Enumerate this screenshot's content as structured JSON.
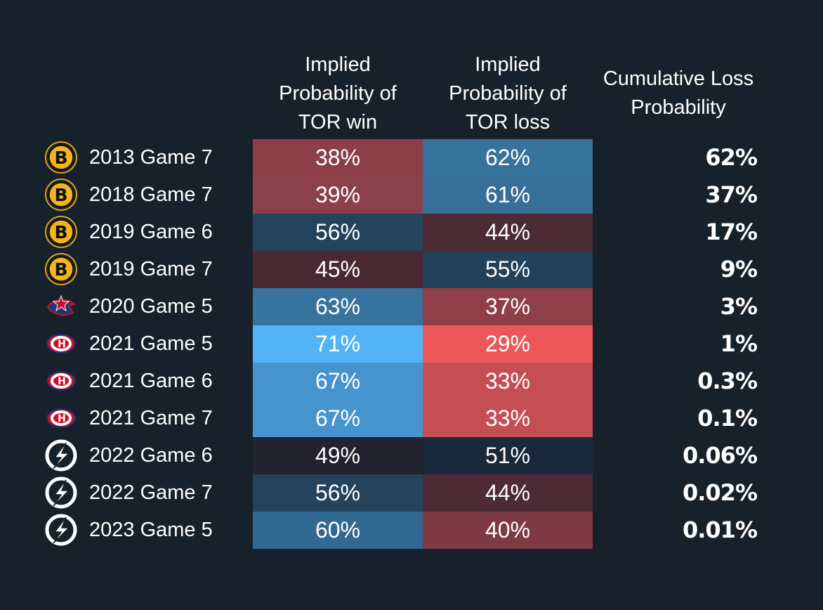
{
  "chart_data": {
    "type": "table",
    "columns": {
      "win": [
        "Implied",
        "Probability of",
        "TOR win"
      ],
      "loss": [
        "Implied",
        "Probability of",
        "TOR loss"
      ],
      "cumulative": [
        "Cumulative Loss",
        "Probability"
      ]
    },
    "rows": [
      {
        "opponent": "bruins-logo-icon",
        "label": "2013 Game 7",
        "win": "38%",
        "loss": "62%",
        "cumulative": "62%",
        "win_color": "#8c3f47",
        "loss_color": "#37729a"
      },
      {
        "opponent": "bruins-logo-icon",
        "label": "2018 Game 7",
        "win": "39%",
        "loss": "61%",
        "cumulative": "37%",
        "win_color": "#8b4149",
        "loss_color": "#376f98"
      },
      {
        "opponent": "bruins-logo-icon",
        "label": "2019 Game 6",
        "win": "56%",
        "loss": "44%",
        "cumulative": "17%",
        "win_color": "#24435d",
        "loss_color": "#4c2b34"
      },
      {
        "opponent": "bruins-logo-icon",
        "label": "2019 Game 7",
        "win": "45%",
        "loss": "55%",
        "cumulative": "9%",
        "win_color": "#4a2a32",
        "loss_color": "#22415b"
      },
      {
        "opponent": "blue-jackets-logo-icon",
        "label": "2020 Game 5",
        "win": "63%",
        "loss": "37%",
        "cumulative": "3%",
        "win_color": "#37739c",
        "loss_color": "#8f3f48"
      },
      {
        "opponent": "canadiens-logo-icon",
        "label": "2021 Game 5",
        "win": "71%",
        "loss": "29%",
        "cumulative": "1%",
        "win_color": "#53b3f6",
        "loss_color": "#ec5759"
      },
      {
        "opponent": "canadiens-logo-icon",
        "label": "2021 Game 6",
        "win": "67%",
        "loss": "33%",
        "cumulative": "0.3%",
        "win_color": "#4693cd",
        "loss_color": "#c54e53"
      },
      {
        "opponent": "canadiens-logo-icon",
        "label": "2021 Game 7",
        "win": "67%",
        "loss": "33%",
        "cumulative": "0.1%",
        "win_color": "#4693cd",
        "loss_color": "#c54e53"
      },
      {
        "opponent": "lightning-logo-icon",
        "label": "2022 Game 6",
        "win": "49%",
        "loss": "51%",
        "cumulative": "0.06%",
        "win_color": "#22232e",
        "loss_color": "#19283a"
      },
      {
        "opponent": "lightning-logo-icon",
        "label": "2022 Game 7",
        "win": "56%",
        "loss": "44%",
        "cumulative": "0.02%",
        "win_color": "#24435d",
        "loss_color": "#4c2b34"
      },
      {
        "opponent": "lightning-logo-icon",
        "label": "2023 Game 5",
        "win": "60%",
        "loss": "40%",
        "cumulative": "0.01%",
        "win_color": "#316993",
        "loss_color": "#7e3a43"
      }
    ]
  }
}
